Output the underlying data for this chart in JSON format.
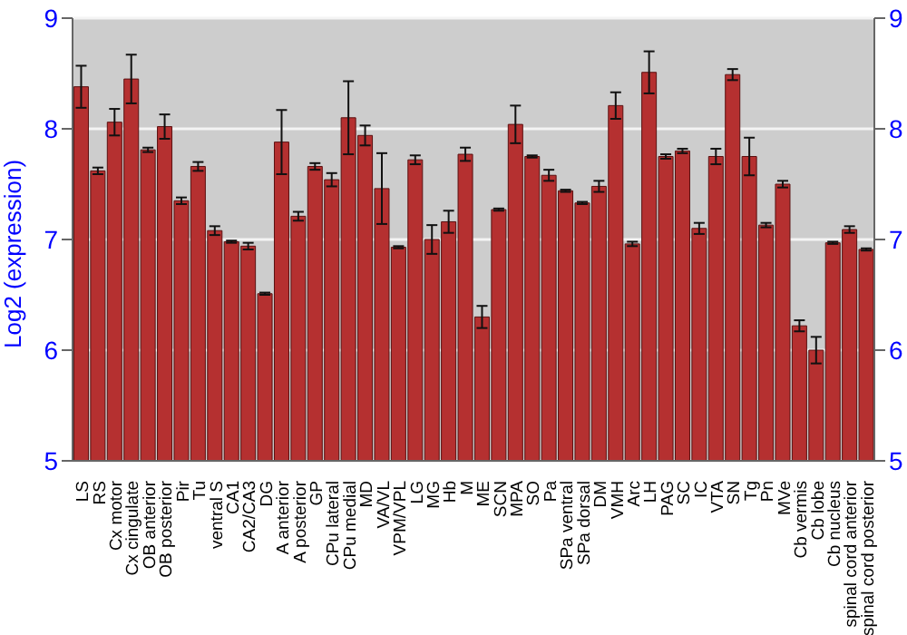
{
  "chart_data": {
    "type": "bar",
    "ylabel": "Log2 (expression)",
    "categories": [
      "LS",
      "RS",
      "Cx motor",
      "Cx cingulate",
      "OB anterior",
      "OB posterior",
      "Pir",
      "Tu",
      "ventral S",
      "CA1",
      "CA2/CA3",
      "DG",
      "A anterior",
      "A posterior",
      "GP",
      "CPu lateral",
      "CPu medial",
      "MD",
      "VA/VL",
      "VPM/VPL",
      "LG",
      "MG",
      "Hb",
      "M",
      "ME",
      "SCN",
      "MPA",
      "SO",
      "Pa",
      "SPa ventral",
      "SPa dorsal",
      "DM",
      "VMH",
      "Arc",
      "LH",
      "PAG",
      "SC",
      "IC",
      "VTA",
      "SN",
      "Tg",
      "Pn",
      "MVe",
      "Cb vermis",
      "Cb lobe",
      "Cb nucleus",
      "spinal cord anterior",
      "spinal cord posterior"
    ],
    "values": [
      8.38,
      7.62,
      8.06,
      8.45,
      7.81,
      8.02,
      7.35,
      7.66,
      7.08,
      6.98,
      6.94,
      6.51,
      7.88,
      7.21,
      7.66,
      7.54,
      8.1,
      7.94,
      7.46,
      6.93,
      7.72,
      7.0,
      7.16,
      7.77,
      6.3,
      7.27,
      8.04,
      7.75,
      7.58,
      7.44,
      7.33,
      7.48,
      8.21,
      6.96,
      8.51,
      7.75,
      7.8,
      7.1,
      7.75,
      8.49,
      7.75,
      7.13,
      7.5,
      6.22,
      6.0,
      6.97,
      7.09,
      6.91
    ],
    "errors": [
      0.19,
      0.03,
      0.12,
      0.22,
      0.02,
      0.11,
      0.03,
      0.04,
      0.04,
      0.01,
      0.03,
      0.01,
      0.29,
      0.04,
      0.03,
      0.06,
      0.33,
      0.09,
      0.32,
      0.01,
      0.04,
      0.13,
      0.1,
      0.06,
      0.1,
      0.01,
      0.17,
      0.01,
      0.05,
      0.01,
      0.01,
      0.05,
      0.12,
      0.02,
      0.19,
      0.02,
      0.02,
      0.05,
      0.07,
      0.05,
      0.17,
      0.02,
      0.03,
      0.05,
      0.12,
      0.01,
      0.03,
      0.01
    ],
    "color": "#b53030",
    "ylim": [
      5,
      9
    ],
    "yticks": [
      5,
      6,
      7,
      8,
      9
    ],
    "y2lim": [
      5,
      9
    ],
    "y2ticks": [
      5,
      6,
      7,
      8,
      9
    ],
    "grid": "y"
  }
}
